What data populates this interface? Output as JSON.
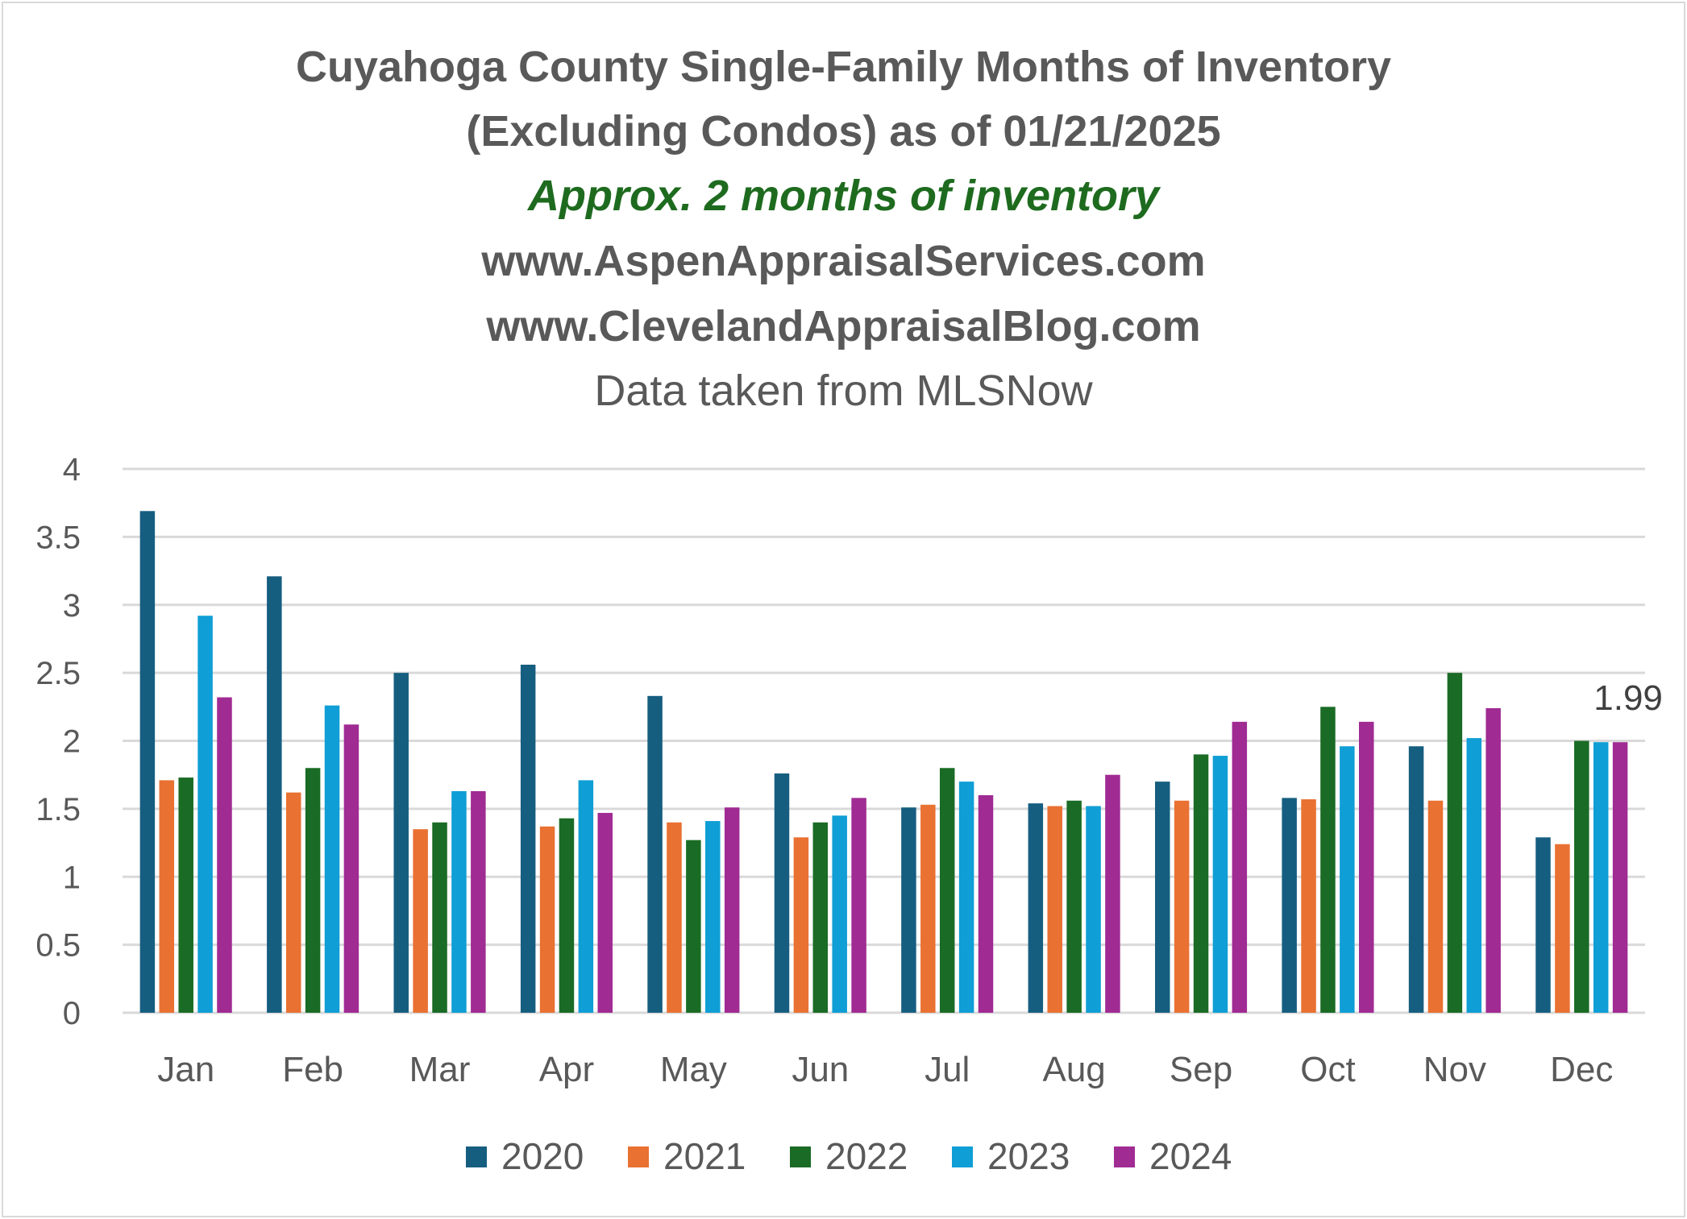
{
  "title": {
    "line1": "Cuyahoga County Single-Family Months of Inventory",
    "line2": "(Excluding Condos) as of 01/21/2025",
    "subtitle": "Approx. 2 months of inventory",
    "site1": "www.AspenAppraisalServices.com",
    "site2": "www.ClevelandAppraisalBlog.com",
    "source": "Data taken from MLSNow"
  },
  "colors": {
    "title": "#595959",
    "subtitle": "#1e6b1f",
    "grid": "#d9d9d9"
  },
  "chart_data": {
    "type": "bar",
    "categories": [
      "Jan",
      "Feb",
      "Mar",
      "Apr",
      "May",
      "Jun",
      "Jul",
      "Aug",
      "Sep",
      "Oct",
      "Nov",
      "Dec"
    ],
    "ylim": [
      0,
      4
    ],
    "yticks": [
      "0",
      "0.5",
      "1",
      "1.5",
      "2",
      "2.5",
      "3",
      "3.5",
      "4"
    ],
    "grid": true,
    "legend": "bottom",
    "series": [
      {
        "name": "2020",
        "color": "#165e80",
        "values": [
          3.69,
          3.21,
          2.5,
          2.56,
          2.33,
          1.76,
          1.51,
          1.54,
          1.7,
          1.58,
          1.96,
          1.29
        ]
      },
      {
        "name": "2021",
        "color": "#e97132",
        "values": [
          1.71,
          1.62,
          1.35,
          1.37,
          1.4,
          1.29,
          1.53,
          1.52,
          1.56,
          1.57,
          1.56,
          1.24
        ]
      },
      {
        "name": "2022",
        "color": "#1a6b25",
        "values": [
          1.73,
          1.8,
          1.4,
          1.43,
          1.27,
          1.4,
          1.8,
          1.56,
          1.9,
          2.25,
          2.5,
          2.0
        ]
      },
      {
        "name": "2023",
        "color": "#0f9ed5",
        "values": [
          2.92,
          2.26,
          1.63,
          1.71,
          1.41,
          1.45,
          1.7,
          1.52,
          1.89,
          1.96,
          2.02,
          1.99
        ]
      },
      {
        "name": "2024",
        "color": "#a02b93",
        "values": [
          2.32,
          2.12,
          1.63,
          1.47,
          1.51,
          1.58,
          1.6,
          1.75,
          2.14,
          2.14,
          2.24,
          1.99
        ]
      }
    ],
    "data_labels": [
      {
        "series": "2024",
        "category": "Dec",
        "text": "1.99"
      }
    ]
  }
}
